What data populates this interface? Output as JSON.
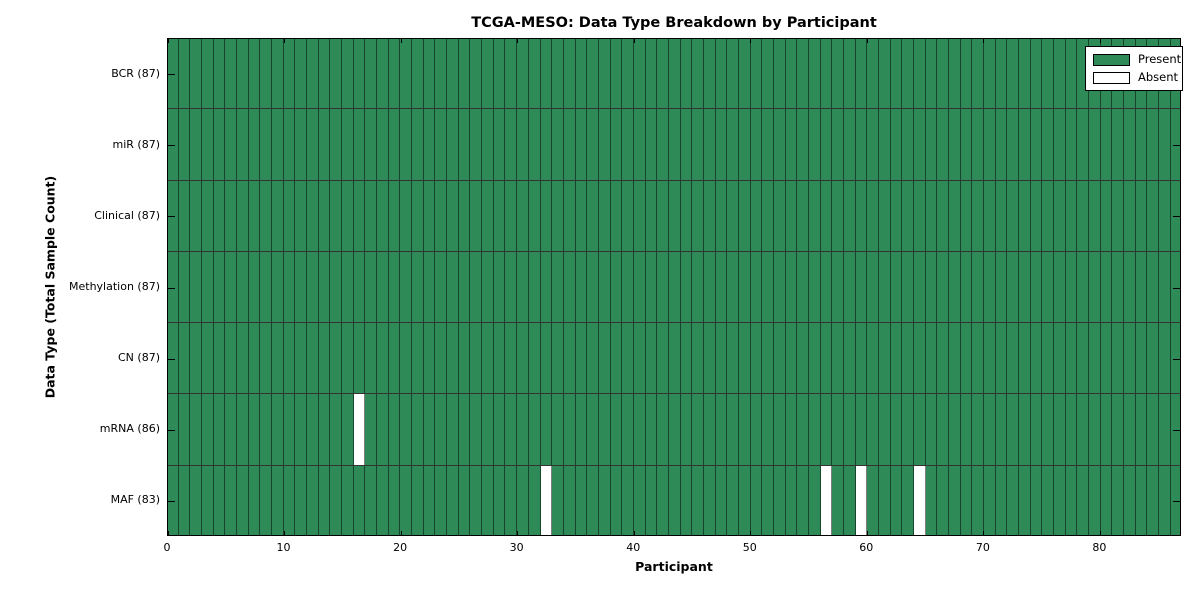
{
  "chart_data": {
    "type": "heatmap",
    "title": "TCGA-MESO: Data Type Breakdown by Participant",
    "xlabel": "Participant",
    "ylabel": "Data Type (Total Sample Count)",
    "n_participants": 87,
    "x_ticks": [
      0,
      10,
      20,
      30,
      40,
      50,
      60,
      70,
      80
    ],
    "rows": [
      {
        "label": "BCR",
        "total": 87,
        "absent_participants": []
      },
      {
        "label": "miR",
        "total": 87,
        "absent_participants": []
      },
      {
        "label": "Clinical",
        "total": 87,
        "absent_participants": []
      },
      {
        "label": "Methylation",
        "total": 87,
        "absent_participants": []
      },
      {
        "label": "CN",
        "total": 87,
        "absent_participants": []
      },
      {
        "label": "mRNA",
        "total": 86,
        "absent_participants": [
          16
        ]
      },
      {
        "label": "MAF",
        "total": 83,
        "absent_participants": [
          32,
          56,
          59,
          64
        ]
      }
    ],
    "legend": [
      {
        "label": "Present",
        "color": "#2e8b57"
      },
      {
        "label": "Absent",
        "color": "#ffffff"
      }
    ],
    "colors": {
      "present": "#2e8b57",
      "absent": "#ffffff",
      "grid_line": "#000000",
      "text": "#000000"
    },
    "layout": {
      "legend_position": "upper right",
      "grid": "on"
    }
  }
}
